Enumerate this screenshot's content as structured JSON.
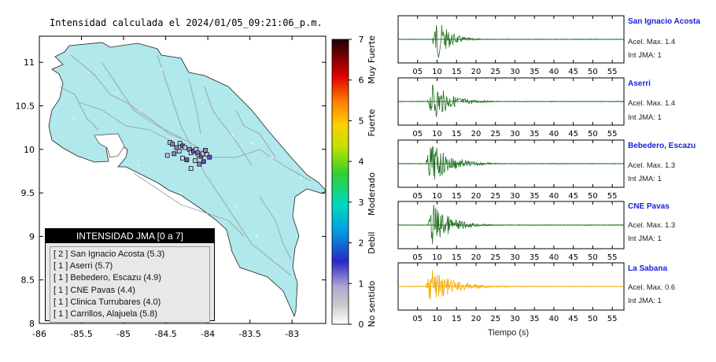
{
  "map": {
    "title": "Intensidad calculada el 2024/01/05_09:21:06_p.m.",
    "x_ticks": [
      "-86",
      "-85.5",
      "-85",
      "-84.5",
      "-84",
      "-83.5",
      "-83"
    ],
    "y_ticks": [
      "11",
      "10.5",
      "10",
      "9.5",
      "9",
      "8.5",
      "8"
    ],
    "land_color": "#b0e8ec",
    "sea_color": "#ffffff"
  },
  "colorbar": {
    "ticks": [
      "7",
      "6",
      "5",
      "4",
      "3",
      "2",
      "1",
      "0"
    ],
    "category_labels": [
      "Muy Fuerte",
      "Fuerte",
      "Moderado",
      "Debil",
      "No sentido"
    ]
  },
  "legend": {
    "title": "INTENSIDAD JMA [0 a 7]",
    "items": [
      "[ 2 ]  San Ignacio Acosta (5.3)",
      "[ 1 ]  Aserri (5.7)",
      "[ 1 ]  Bebedero, Escazu (4.9)",
      "[ 1 ]  CNE Pavas (4.4)",
      "[ 1 ]  Clinica Turrubares (4.0)",
      "[ 1 ]  Carrillos, Alajuela (5.8)"
    ]
  },
  "stations": [
    {
      "name": "San Ignacio Acosta",
      "acel": "Acel. Max. 1.4",
      "int": "Int JMA: 1",
      "color": "#1f6e1f"
    },
    {
      "name": "Aserri",
      "acel": "Acel. Max. 1.4",
      "int": "Int JMA: 1",
      "color": "#1f6e1f"
    },
    {
      "name": "Bebedero, Escazu",
      "acel": "Acel. Max. 1.3",
      "int": "Int JMA: 1",
      "color": "#1f6e1f"
    },
    {
      "name": "CNE Pavas",
      "acel": "Acel. Max. 1.3",
      "int": "Int JMA: 1",
      "color": "#1f6e1f"
    },
    {
      "name": "La Sabana",
      "acel": "Acel. Max. 0.6",
      "int": "Int JMA: 1",
      "color": "#f2a900"
    }
  ],
  "time_axis": {
    "label": "Tiempo (s)",
    "ticks": [
      "05",
      "10",
      "15",
      "20",
      "25",
      "30",
      "35",
      "40",
      "45",
      "50",
      "55"
    ]
  },
  "chart_data": [
    {
      "type": "scatter",
      "title": "Intensidad calculada el 2024/01/05_09:21:06_p.m.",
      "xlim": [
        -86,
        -82.6
      ],
      "ylim": [
        8,
        11.3
      ],
      "series": [
        {
          "values": [
            {
              "x": -84.45,
              "y": 10.08
            },
            {
              "x": -84.42,
              "y": 10.06
            },
            {
              "x": -84.33,
              "y": 10.07
            },
            {
              "x": -84.3,
              "y": 10.04
            },
            {
              "x": -84.27,
              "y": 10.02
            },
            {
              "x": -84.22,
              "y": 10.0
            },
            {
              "x": -84.2,
              "y": 9.96
            },
            {
              "x": -84.17,
              "y": 9.98
            },
            {
              "x": -84.14,
              "y": 10.0
            },
            {
              "x": -84.12,
              "y": 9.96
            },
            {
              "x": -84.1,
              "y": 9.93
            },
            {
              "x": -84.08,
              "y": 9.92
            },
            {
              "x": -84.06,
              "y": 9.95
            },
            {
              "x": -84.03,
              "y": 9.99
            },
            {
              "x": -84.01,
              "y": 9.94
            },
            {
              "x": -83.98,
              "y": 9.91
            },
            {
              "x": -84.48,
              "y": 9.93
            },
            {
              "x": -84.4,
              "y": 9.95
            },
            {
              "x": -84.3,
              "y": 9.9
            },
            {
              "x": -84.25,
              "y": 9.88
            },
            {
              "x": -84.15,
              "y": 9.87
            },
            {
              "x": -84.1,
              "y": 9.83
            },
            {
              "x": -84.2,
              "y": 9.78
            },
            {
              "x": -84.05,
              "y": 9.86
            },
            {
              "x": -84.34,
              "y": 9.98
            },
            {
              "x": -84.37,
              "y": 10.02
            }
          ]
        }
      ]
    },
    {
      "type": "heatmap",
      "title": "Intensidad JMA",
      "ylim": [
        0,
        7
      ],
      "y_ticks": [
        0,
        1,
        2,
        3,
        4,
        5,
        6,
        7
      ]
    },
    {
      "type": "line",
      "xlabel": "Tiempo (s)",
      "xlim": [
        0,
        58
      ],
      "series": [
        {
          "name": "San Ignacio Acosta",
          "onset": 8.5,
          "peak": 1.0,
          "duration": 10
        },
        {
          "name": "Aserri",
          "onset": 7.5,
          "peak": 0.9,
          "duration": 14
        },
        {
          "name": "Bebedero, Escazu",
          "onset": 7.0,
          "peak": 1.0,
          "duration": 15
        },
        {
          "name": "CNE Pavas",
          "onset": 7.5,
          "peak": 1.0,
          "duration": 14
        },
        {
          "name": "La Sabana",
          "onset": 7.0,
          "peak": 0.8,
          "duration": 18
        }
      ]
    }
  ]
}
